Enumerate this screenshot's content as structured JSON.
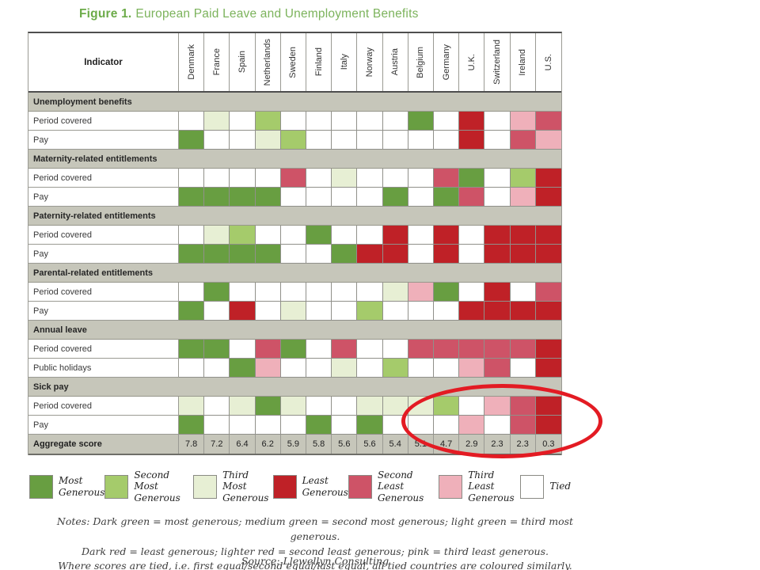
{
  "title": {
    "figure_label": "Figure 1.",
    "text": "European Paid Leave and Unemployment Benefits"
  },
  "colors": {
    "G1": "#689e41",
    "G2": "#a5cb6b",
    "G3": "#e7efd4",
    "R1": "#bf2127",
    "R2": "#ce5367",
    "R3": "#efb0ba",
    "W": "#ffffff",
    "section_bar": "#c6c6ba",
    "title_green": "#7cb35c",
    "annotation_red": "#e31b23"
  },
  "table": {
    "indicator_header": "Indicator"
  },
  "chart_data": {
    "type": "heatmap",
    "title": "Figure 1. European Paid Leave and Unemployment Benefits",
    "columns": [
      "Denmark",
      "France",
      "Spain",
      "Netherlands",
      "Sweden",
      "Finland",
      "Italy",
      "Norway",
      "Austria",
      "Belgium",
      "Germany",
      "U.K.",
      "Switzerland",
      "Ireland",
      "U.S."
    ],
    "color_scale": {
      "G1": "Most Generous",
      "G2": "Second Most Generous",
      "G3": "Third Most Generous",
      "R1": "Least Generous",
      "R2": "Second Least Generous",
      "R3": "Third Least Generous",
      "W": "Tied"
    },
    "sections": [
      {
        "label": "Unemployment benefits",
        "rows": [
          {
            "label": "Period covered",
            "cells": [
              "W",
              "G3",
              "W",
              "G2",
              "W",
              "W",
              "W",
              "W",
              "W",
              "G1",
              "W",
              "R1",
              "W",
              "R3",
              "R2"
            ]
          },
          {
            "label": "Pay",
            "cells": [
              "G1",
              "W",
              "W",
              "G3",
              "G2",
              "W",
              "W",
              "W",
              "W",
              "W",
              "W",
              "R1",
              "W",
              "R2",
              "R3"
            ]
          }
        ]
      },
      {
        "label": "Maternity-related entitlements",
        "rows": [
          {
            "label": "Period covered",
            "cells": [
              "W",
              "W",
              "W",
              "W",
              "R2",
              "W",
              "G3",
              "W",
              "W",
              "W",
              "R2",
              "G1",
              "W",
              "G2",
              "R1"
            ]
          },
          {
            "label": "Pay",
            "cells": [
              "G1",
              "G1",
              "G1",
              "G1",
              "W",
              "W",
              "W",
              "W",
              "G1",
              "W",
              "G1",
              "R2",
              "W",
              "R3",
              "R1"
            ]
          }
        ]
      },
      {
        "label": "Paternity-related entitlements",
        "rows": [
          {
            "label": "Period covered",
            "cells": [
              "W",
              "G3",
              "G2",
              "W",
              "W",
              "G1",
              "W",
              "W",
              "R1",
              "W",
              "R1",
              "W",
              "R1",
              "R1",
              "R1"
            ]
          },
          {
            "label": "Pay",
            "cells": [
              "G1",
              "G1",
              "G1",
              "G1",
              "W",
              "W",
              "G1",
              "R1",
              "R1",
              "W",
              "R1",
              "W",
              "R1",
              "R1",
              "R1"
            ]
          }
        ]
      },
      {
        "label": "Parental-related entitlements",
        "rows": [
          {
            "label": "Period covered",
            "cells": [
              "W",
              "G1",
              "W",
              "W",
              "W",
              "W",
              "W",
              "W",
              "G3",
              "R3",
              "G1",
              "W",
              "R1",
              "W",
              "R2"
            ]
          },
          {
            "label": "Pay",
            "cells": [
              "G1",
              "W",
              "R1",
              "W",
              "G3",
              "W",
              "W",
              "G2",
              "W",
              "W",
              "W",
              "R1",
              "R1",
              "R1",
              "R1"
            ]
          }
        ]
      },
      {
        "label": "Annual leave",
        "rows": [
          {
            "label": "Period covered",
            "cells": [
              "G1",
              "G1",
              "W",
              "R2",
              "G1",
              "W",
              "R2",
              "W",
              "W",
              "R2",
              "R2",
              "R2",
              "R2",
              "R2",
              "R1"
            ]
          },
          {
            "label": "Public holidays",
            "cells": [
              "W",
              "W",
              "G1",
              "R3",
              "W",
              "W",
              "G3",
              "W",
              "G2",
              "W",
              "W",
              "R3",
              "R2",
              "W",
              "R1"
            ]
          }
        ]
      },
      {
        "label": "Sick pay",
        "rows": [
          {
            "label": "Period covered",
            "cells": [
              "G3",
              "W",
              "G3",
              "G1",
              "G3",
              "W",
              "W",
              "G3",
              "G3",
              "G3",
              "G2",
              "W",
              "R3",
              "R2",
              "R1"
            ]
          },
          {
            "label": "Pay",
            "cells": [
              "G1",
              "W",
              "W",
              "W",
              "W",
              "G1",
              "W",
              "G1",
              "W",
              "W",
              "W",
              "R3",
              "W",
              "R2",
              "R1"
            ]
          }
        ]
      }
    ],
    "aggregate": {
      "label": "Aggregate score",
      "values": [
        "7.8",
        "7.2",
        "6.4",
        "6.2",
        "5.9",
        "5.8",
        "5.6",
        "5.6",
        "5.4",
        "5.1",
        "4.7",
        "2.9",
        "2.3",
        "2.3",
        "0.3"
      ]
    }
  },
  "legend": {
    "items": [
      {
        "line1": "Most",
        "line2": "Generous",
        "color": "G1"
      },
      {
        "line1": "Second Most",
        "line2": "Generous",
        "color": "G2"
      },
      {
        "line1": "Third Most",
        "line2": "Generous",
        "color": "G3"
      },
      {
        "line1": "Least",
        "line2": "Generous",
        "color": "R1"
      },
      {
        "line1": "Second Least",
        "line2": "Generous",
        "color": "R2"
      },
      {
        "line1": "Third Least",
        "line2": "Generous",
        "color": "R3"
      },
      {
        "line1": "Tied",
        "line2": "",
        "color": "W"
      }
    ]
  },
  "notes": {
    "lines": [
      "Notes: Dark green = most generous; medium green = second most generous; light green = third most generous.",
      "Dark red = least generous; lighter red = second least generous; pink = third least generous.",
      "Where scores are tied, i.e. first equal/second equal/last equal, all tied countries are coloured similarly."
    ],
    "source": "Source: Llewellyn Consulting"
  }
}
